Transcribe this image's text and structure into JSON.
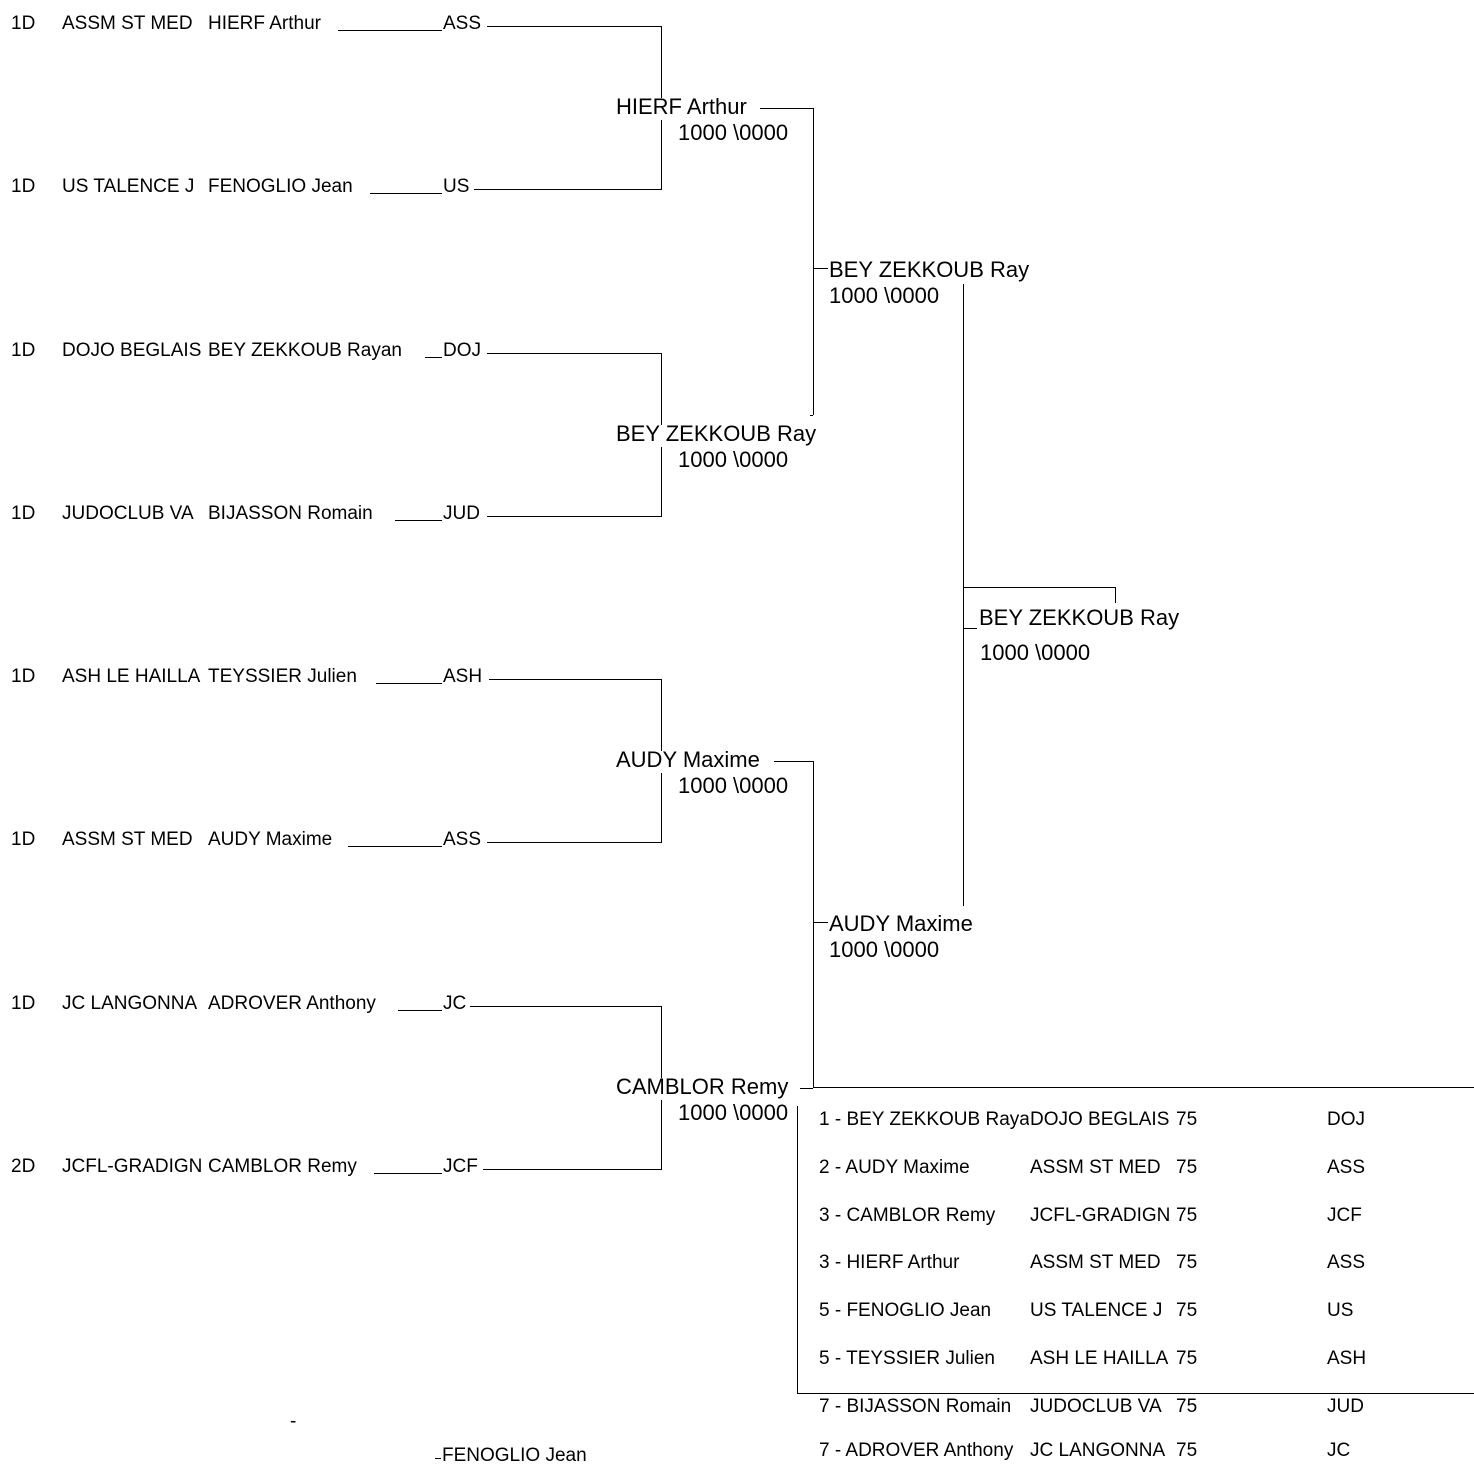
{
  "entries": [
    {
      "grade": "1D",
      "club": "ASSM ST MED",
      "name": "HIERF Arthur",
      "code": "ASS"
    },
    {
      "grade": "1D",
      "club": "US TALENCE J",
      "name": "FENOGLIO Jean",
      "code": "US"
    },
    {
      "grade": "1D",
      "club": "DOJO BEGLAIS",
      "name": "BEY ZEKKOUB Rayan",
      "code": "DOJ"
    },
    {
      "grade": "1D",
      "club": "JUDOCLUB VA",
      "name": "BIJASSON Romain",
      "code": "JUD"
    },
    {
      "grade": "1D",
      "club": "ASH LE HAILLA",
      "name": "TEYSSIER Julien",
      "code": "ASH"
    },
    {
      "grade": "1D",
      "club": "ASSM ST MED",
      "name": "AUDY Maxime",
      "code": "ASS"
    },
    {
      "grade": "1D",
      "club": "JC LANGONNA",
      "name": "ADROVER Anthony",
      "code": "JC"
    },
    {
      "grade": "2D",
      "club": "JCFL-GRADIGN",
      "name": "CAMBLOR Remy",
      "code": "JCF"
    }
  ],
  "round2": [
    {
      "winner": "HIERF Arthur",
      "score": "1000 \\0000"
    },
    {
      "winner": "BEY ZEKKOUB Ray",
      "score": "1000 \\0000"
    },
    {
      "winner": "AUDY Maxime",
      "score": "1000 \\0000"
    },
    {
      "winner": "CAMBLOR Remy",
      "score": "1000 \\0000"
    }
  ],
  "semis": [
    {
      "winner": "BEY ZEKKOUB Ray",
      "score": "1000 \\0000"
    },
    {
      "winner": "AUDY Maxime",
      "score": "1000 \\0000"
    }
  ],
  "final": {
    "winner": "BEY ZEKKOUB Ray",
    "score": "1000 \\0000"
  },
  "results": [
    {
      "rank": "1 - BEY ZEKKOUB Rayan",
      "club": "DOJO BEGLAIS",
      "weight": "75",
      "code": "DOJ"
    },
    {
      "rank": "2 - AUDY Maxime",
      "club": "ASSM ST MED",
      "weight": "75",
      "code": "ASS"
    },
    {
      "rank": "3 - CAMBLOR Remy",
      "club": "JCFL-GRADIGN",
      "weight": "75",
      "code": "JCF"
    },
    {
      "rank": "3 - HIERF Arthur",
      "club": "ASSM ST MED",
      "weight": "75",
      "code": "ASS"
    },
    {
      "rank": "5 - FENOGLIO Jean",
      "club": "US TALENCE J",
      "weight": "75",
      "code": "US"
    },
    {
      "rank": "5 - TEYSSIER Julien",
      "club": "ASH LE HAILLA",
      "weight": "75",
      "code": "ASH"
    },
    {
      "rank": "7 - BIJASSON Romain",
      "club": "JUDOCLUB VA",
      "weight": "75",
      "code": "JUD"
    },
    {
      "rank": "7 - ADROVER Anthony",
      "club": "JC LANGONNA",
      "weight": "75",
      "code": "JC"
    }
  ],
  "footer": {
    "dash": "-",
    "name": "FENOGLIO Jean"
  }
}
